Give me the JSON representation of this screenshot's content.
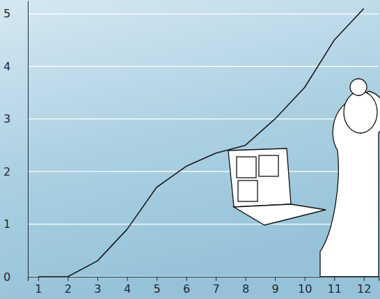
{
  "chart_data": {
    "type": "line",
    "x": [
      1,
      2,
      3,
      4,
      5,
      6,
      7,
      8,
      9,
      10,
      11,
      12
    ],
    "series": [
      {
        "color": "#1a1a1a",
        "values": [
          0,
          0,
          0.3,
          0.9,
          1.7,
          2.1,
          2.35,
          2.5,
          3.0,
          3.6,
          4.5,
          5.1
        ]
      }
    ],
    "xlim": [
      0.65,
      12.5
    ],
    "xticks": [
      1,
      2,
      3,
      4,
      5,
      6,
      7,
      8,
      9,
      10,
      11,
      12
    ],
    "ylim": [
      0,
      5.25
    ],
    "yticks": [
      0,
      1,
      2,
      3,
      4,
      5
    ],
    "grid": true
  }
}
